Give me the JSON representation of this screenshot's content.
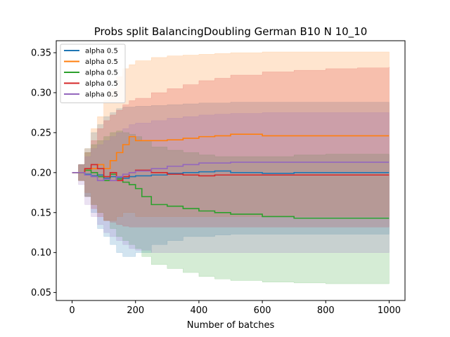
{
  "chart_data": {
    "type": "line",
    "title": "Probs split BalancingDoubling German B10 N 10_10",
    "xlabel": "Number of batches",
    "ylabel": "",
    "xlim": [
      -50,
      1050
    ],
    "ylim": [
      0.04,
      0.365
    ],
    "xticks": [
      0,
      200,
      400,
      600,
      800,
      1000
    ],
    "yticks": [
      0.05,
      0.1,
      0.15,
      0.2,
      0.25,
      0.3,
      0.35
    ],
    "ytick_labels": [
      "0.05",
      "0.10",
      "0.15",
      "0.20",
      "0.25",
      "0.30",
      "0.35"
    ],
    "legend_placement": "top-left",
    "grid": false,
    "series": [
      {
        "name": "alpha 0.5",
        "color": "#1f77b4",
        "x": [
          0,
          20,
          40,
          60,
          80,
          100,
          120,
          140,
          160,
          180,
          200,
          250,
          300,
          350,
          400,
          450,
          500,
          600,
          700,
          800,
          900,
          1000
        ],
        "y": [
          0.2,
          0.2,
          0.198,
          0.196,
          0.197,
          0.193,
          0.195,
          0.194,
          0.193,
          0.195,
          0.196,
          0.197,
          0.199,
          0.2,
          0.201,
          0.202,
          0.2,
          0.199,
          0.2,
          0.2,
          0.2,
          0.2
        ],
        "lower": [
          0.2,
          0.19,
          0.17,
          0.15,
          0.13,
          0.12,
          0.11,
          0.1,
          0.095,
          0.095,
          0.1,
          0.11,
          0.115,
          0.12,
          0.12,
          0.122,
          0.123,
          0.123,
          0.123,
          0.123,
          0.123,
          0.123
        ],
        "upper": [
          0.2,
          0.21,
          0.23,
          0.25,
          0.26,
          0.27,
          0.275,
          0.28,
          0.282,
          0.282,
          0.283,
          0.284,
          0.285,
          0.286,
          0.287,
          0.287,
          0.288,
          0.288,
          0.288,
          0.288,
          0.288,
          0.288
        ]
      },
      {
        "name": "alpha 0.5",
        "color": "#ff7f0e",
        "x": [
          0,
          20,
          40,
          60,
          80,
          100,
          120,
          140,
          160,
          180,
          200,
          250,
          300,
          350,
          400,
          450,
          500,
          600,
          700,
          800,
          900,
          1000
        ],
        "y": [
          0.2,
          0.2,
          0.203,
          0.205,
          0.21,
          0.205,
          0.215,
          0.225,
          0.235,
          0.245,
          0.24,
          0.24,
          0.241,
          0.243,
          0.245,
          0.246,
          0.248,
          0.246,
          0.246,
          0.246,
          0.246,
          0.246
        ],
        "lower": [
          0.2,
          0.19,
          0.175,
          0.16,
          0.15,
          0.14,
          0.14,
          0.145,
          0.15,
          0.15,
          0.145,
          0.145,
          0.145,
          0.145,
          0.145,
          0.145,
          0.145,
          0.145,
          0.145,
          0.145,
          0.145,
          0.145
        ],
        "upper": [
          0.2,
          0.21,
          0.23,
          0.255,
          0.27,
          0.29,
          0.305,
          0.32,
          0.33,
          0.335,
          0.34,
          0.344,
          0.346,
          0.347,
          0.348,
          0.349,
          0.35,
          0.351,
          0.351,
          0.351,
          0.351,
          0.351
        ]
      },
      {
        "name": "alpha 0.5",
        "color": "#2ca02c",
        "x": [
          0,
          20,
          40,
          60,
          80,
          100,
          120,
          140,
          160,
          180,
          200,
          220,
          250,
          300,
          350,
          400,
          450,
          500,
          600,
          700,
          800,
          900,
          1000
        ],
        "y": [
          0.2,
          0.2,
          0.203,
          0.2,
          0.195,
          0.19,
          0.198,
          0.192,
          0.188,
          0.185,
          0.18,
          0.17,
          0.16,
          0.158,
          0.155,
          0.152,
          0.15,
          0.148,
          0.145,
          0.143,
          0.143,
          0.143,
          0.143
        ],
        "lower": [
          0.2,
          0.19,
          0.17,
          0.16,
          0.15,
          0.14,
          0.13,
          0.12,
          0.115,
          0.11,
          0.105,
          0.095,
          0.085,
          0.08,
          0.075,
          0.07,
          0.067,
          0.065,
          0.063,
          0.062,
          0.061,
          0.061,
          0.061
        ],
        "upper": [
          0.2,
          0.21,
          0.225,
          0.235,
          0.24,
          0.245,
          0.25,
          0.252,
          0.25,
          0.248,
          0.245,
          0.24,
          0.232,
          0.228,
          0.225,
          0.222,
          0.22,
          0.22,
          0.22,
          0.222,
          0.223,
          0.223,
          0.223
        ]
      },
      {
        "name": "alpha 0.5",
        "color": "#d62728",
        "x": [
          0,
          20,
          40,
          60,
          80,
          100,
          120,
          140,
          160,
          180,
          200,
          250,
          300,
          350,
          400,
          450,
          500,
          600,
          700,
          800,
          900,
          1000
        ],
        "y": [
          0.2,
          0.2,
          0.205,
          0.21,
          0.205,
          0.195,
          0.2,
          0.19,
          0.195,
          0.2,
          0.203,
          0.2,
          0.198,
          0.197,
          0.196,
          0.197,
          0.197,
          0.197,
          0.197,
          0.197,
          0.197,
          0.197
        ],
        "lower": [
          0.2,
          0.19,
          0.17,
          0.155,
          0.145,
          0.14,
          0.138,
          0.135,
          0.133,
          0.132,
          0.132,
          0.132,
          0.132,
          0.132,
          0.132,
          0.132,
          0.132,
          0.132,
          0.132,
          0.132,
          0.132,
          0.132
        ],
        "upper": [
          0.2,
          0.21,
          0.225,
          0.24,
          0.255,
          0.265,
          0.272,
          0.278,
          0.285,
          0.29,
          0.293,
          0.3,
          0.305,
          0.31,
          0.315,
          0.318,
          0.322,
          0.326,
          0.328,
          0.33,
          0.331,
          0.332
        ]
      },
      {
        "name": "alpha 0.5",
        "color": "#9467bd",
        "x": [
          0,
          20,
          40,
          60,
          80,
          100,
          120,
          140,
          160,
          180,
          200,
          250,
          300,
          350,
          400,
          450,
          500,
          600,
          700,
          800,
          900,
          1000
        ],
        "y": [
          0.2,
          0.2,
          0.197,
          0.195,
          0.19,
          0.192,
          0.19,
          0.195,
          0.198,
          0.2,
          0.202,
          0.205,
          0.208,
          0.21,
          0.212,
          0.212,
          0.213,
          0.213,
          0.213,
          0.213,
          0.213,
          0.213
        ],
        "lower": [
          0.2,
          0.185,
          0.16,
          0.145,
          0.135,
          0.125,
          0.12,
          0.115,
          0.11,
          0.105,
          0.103,
          0.1,
          0.1,
          0.1,
          0.1,
          0.1,
          0.1,
          0.1,
          0.1,
          0.1,
          0.1,
          0.1
        ],
        "upper": [
          0.2,
          0.21,
          0.22,
          0.23,
          0.235,
          0.24,
          0.245,
          0.25,
          0.255,
          0.26,
          0.262,
          0.265,
          0.268,
          0.27,
          0.272,
          0.273,
          0.274,
          0.275,
          0.275,
          0.275,
          0.275,
          0.275
        ]
      }
    ]
  }
}
